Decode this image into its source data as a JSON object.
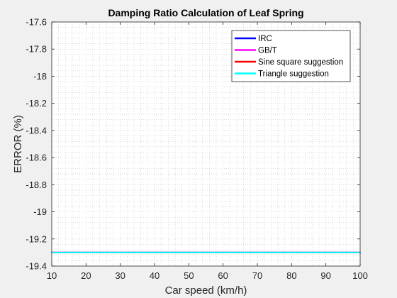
{
  "chart_data": {
    "type": "line",
    "title": "Damping Ratio Calculation of Leaf Spring",
    "xlabel": "Car speed (km/h)",
    "ylabel": "ERROR (%)",
    "xlim": [
      10,
      100
    ],
    "ylim": [
      -19.4,
      -17.6
    ],
    "xticks": [
      10,
      20,
      30,
      40,
      50,
      60,
      70,
      80,
      90,
      100
    ],
    "yticks": [
      -17.6,
      -17.8,
      -18,
      -18.2,
      -18.4,
      -18.6,
      -18.8,
      -19,
      -19.2,
      -19.4
    ],
    "grid": "minor-dotted",
    "legend_position": "top-right",
    "x": [
      10,
      20,
      30,
      40,
      50,
      60,
      70,
      80,
      90,
      100
    ],
    "series": [
      {
        "name": "IRC",
        "color": "#0000ff",
        "values": [
          -19.3,
          -19.3,
          -19.3,
          -19.3,
          -19.3,
          -19.3,
          -19.3,
          -19.3,
          -19.3,
          -19.3
        ]
      },
      {
        "name": "GB/T",
        "color": "#ff00ff",
        "values": [
          -19.3,
          -19.3,
          -19.3,
          -19.3,
          -19.3,
          -19.3,
          -19.3,
          -19.3,
          -19.3,
          -19.3
        ]
      },
      {
        "name": "Sine square suggestion",
        "color": "#ff0000",
        "values": [
          -19.3,
          -19.3,
          -19.3,
          -19.3,
          -19.3,
          -19.3,
          -19.3,
          -19.3,
          -19.3,
          -19.3
        ]
      },
      {
        "name": "Triangle suggestion",
        "color": "#00ffff",
        "values": [
          -19.3,
          -19.3,
          -19.3,
          -19.3,
          -19.3,
          -19.3,
          -19.3,
          -19.3,
          -19.3,
          -19.3
        ]
      }
    ]
  }
}
